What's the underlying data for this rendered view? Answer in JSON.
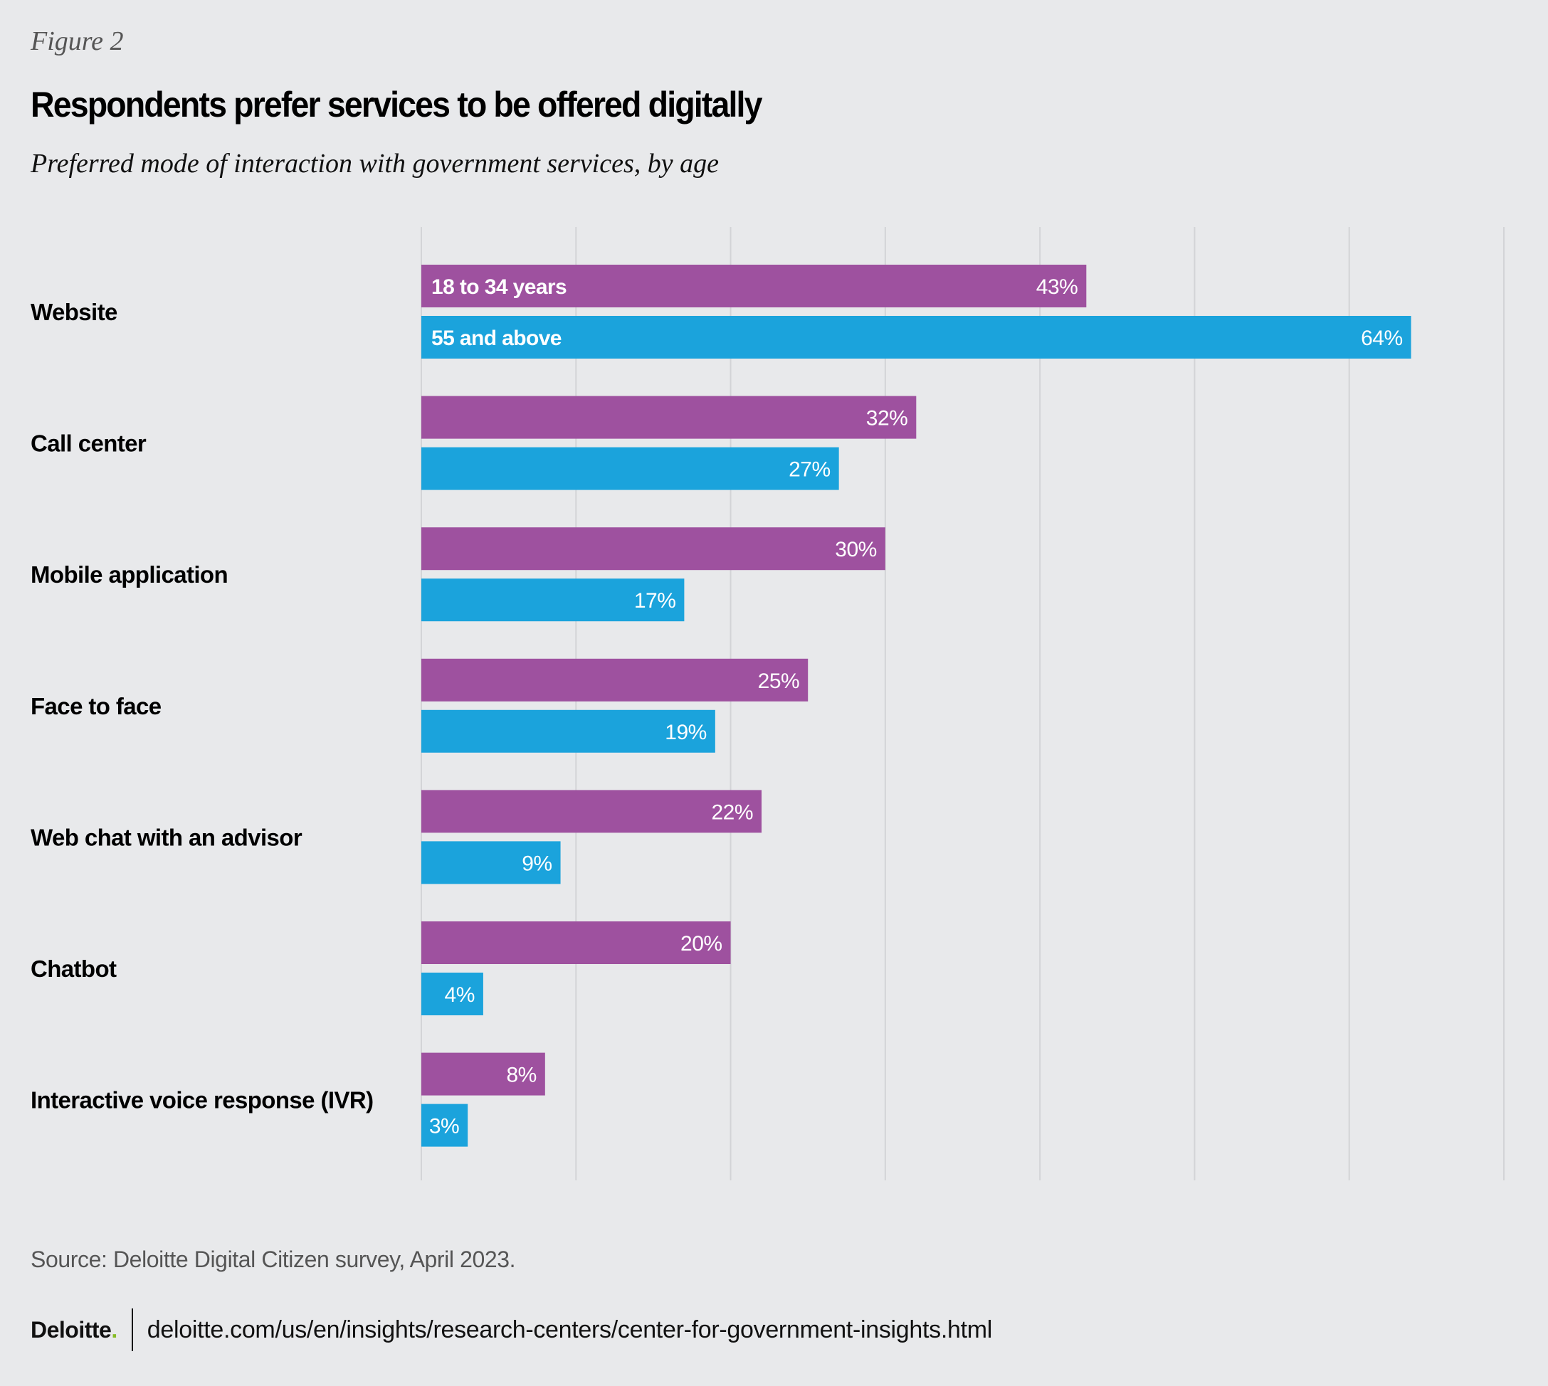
{
  "figure_label": "Figure 2",
  "title": "Respondents prefer services to be offered digitally",
  "subtitle": "Preferred mode of interaction with government services, by age",
  "colors": {
    "background": "#e8e9eb",
    "series_18_34": "#9e519f",
    "series_55_plus": "#1ba3dc",
    "gridline": "#d3d4d7",
    "logo_dot": "#86bc25"
  },
  "chart_data": {
    "type": "bar",
    "orientation": "horizontal",
    "title": "Respondents prefer services to be offered digitally",
    "subtitle": "Preferred mode of interaction with government services, by age",
    "xlabel": "",
    "ylabel": "",
    "xlim": [
      0,
      70
    ],
    "grid": true,
    "grid_step": 10,
    "value_suffix": "%",
    "legend_placement": "inline-first-bar",
    "categories": [
      "Website",
      "Call center",
      "Mobile application",
      "Face to face",
      "Web chat with an advisor",
      "Chatbot",
      "Interactive voice response (IVR)"
    ],
    "series": [
      {
        "name": "18 to 34 years",
        "color": "#9e519f",
        "values": [
          43,
          32,
          30,
          25,
          22,
          20,
          8
        ]
      },
      {
        "name": "55 and above",
        "color": "#1ba3dc",
        "values": [
          64,
          27,
          17,
          19,
          9,
          4,
          3
        ]
      }
    ]
  },
  "source": "Source: Deloitte Digital Citizen survey, April 2023.",
  "footer": {
    "logo_text": "Deloitte",
    "logo_dot": ".",
    "url": "deloitte.com/us/en/insights/research-centers/center-for-government-insights.html"
  }
}
